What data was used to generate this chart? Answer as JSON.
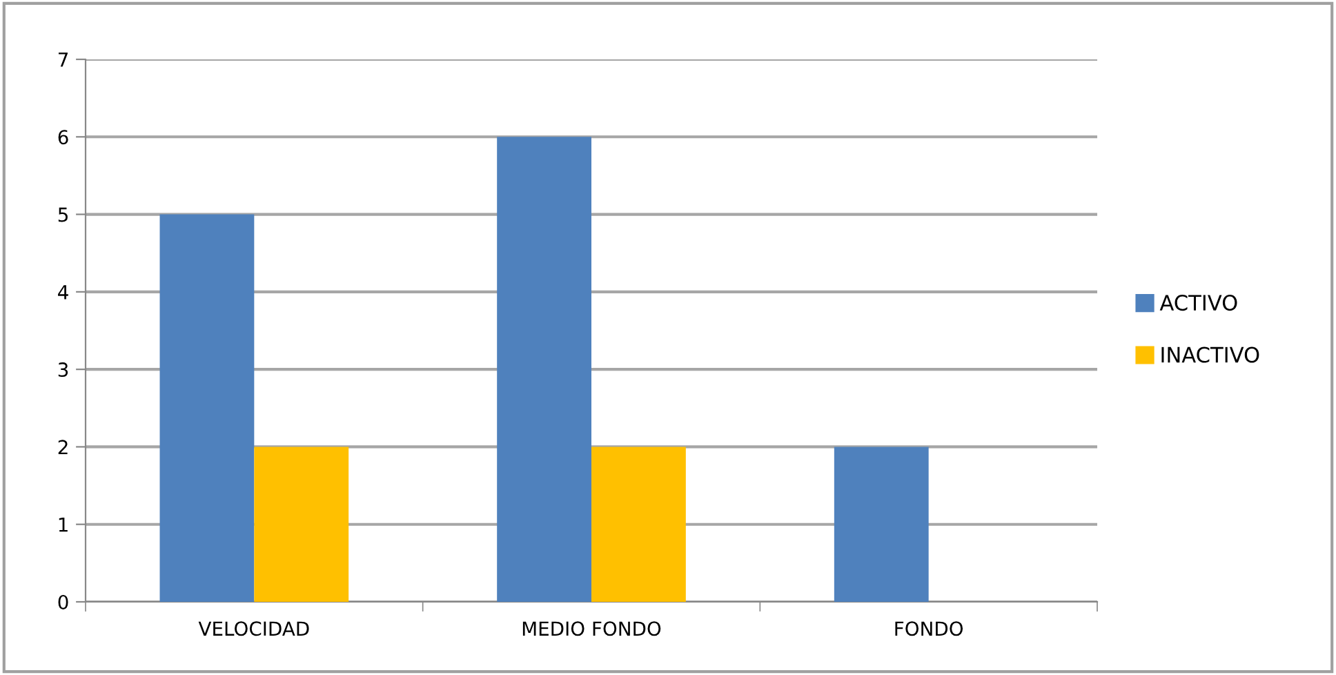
{
  "chart_data": {
    "type": "bar",
    "categories": [
      "VELOCIDAD",
      "MEDIO FONDO",
      "FONDO"
    ],
    "series": [
      {
        "name": "ACTIVO",
        "color": "#4f81bd",
        "values": [
          5,
          6,
          2
        ]
      },
      {
        "name": "INACTIVO",
        "color": "#ffc000",
        "values": [
          2,
          2,
          0
        ]
      }
    ],
    "ylim": [
      0,
      7
    ],
    "yticks": [
      0,
      1,
      2,
      3,
      4,
      5,
      6,
      7
    ],
    "grid": "y",
    "legend": "right"
  }
}
